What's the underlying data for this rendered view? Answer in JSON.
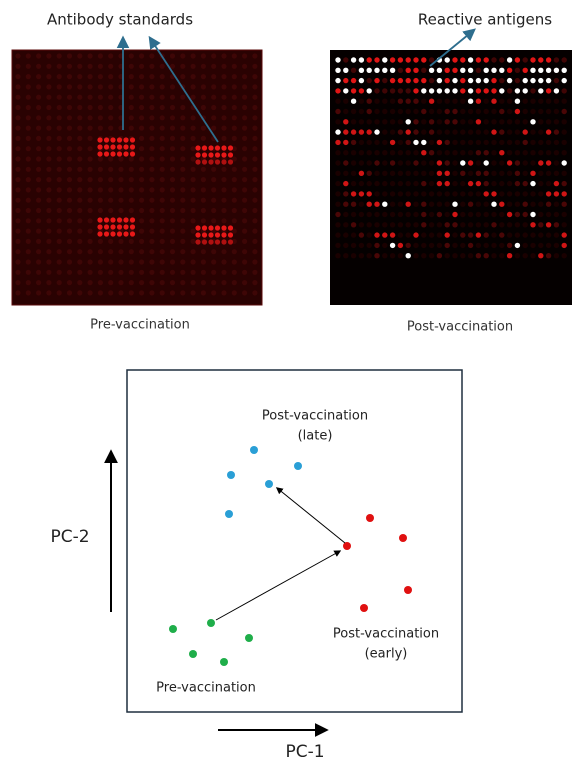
{
  "panels": [
    {
      "annotation": "Antibody standards",
      "caption": "Pre-vaccination"
    },
    {
      "annotation": "Reactive antigens",
      "caption": "Post-vaccination"
    }
  ],
  "pca": {
    "x_label": "PC-1",
    "y_label": "PC-2",
    "groups": [
      {
        "label": [
          "Post-vaccination",
          "(late)"
        ]
      },
      {
        "label": [
          "Post-vaccination",
          "(early)"
        ]
      },
      {
        "label": [
          "Pre-vaccination"
        ]
      }
    ]
  }
}
